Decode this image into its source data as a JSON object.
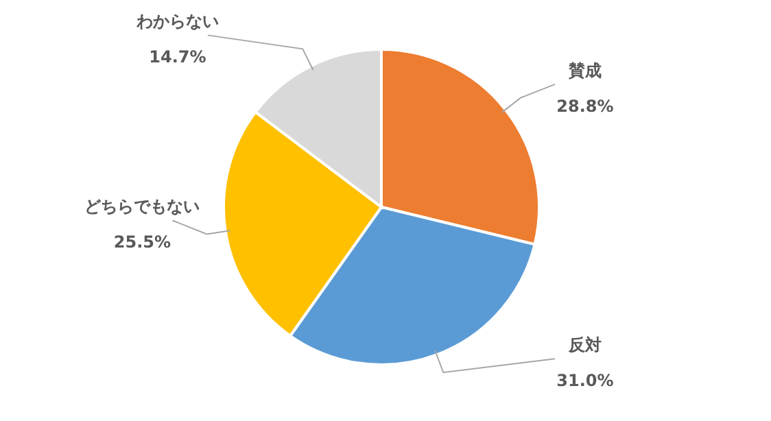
{
  "chart_data": {
    "type": "pie",
    "categories": [
      "賛成",
      "反対",
      "どちらでもない",
      "わからない"
    ],
    "values": [
      28.8,
      31.0,
      25.5,
      14.7
    ],
    "colors": [
      "#ed7d31",
      "#5b9bd5",
      "#ffc000",
      "#d9d9d9"
    ],
    "value_labels": [
      "28.8%",
      "31.0%",
      "25.5%",
      "14.7%"
    ]
  }
}
